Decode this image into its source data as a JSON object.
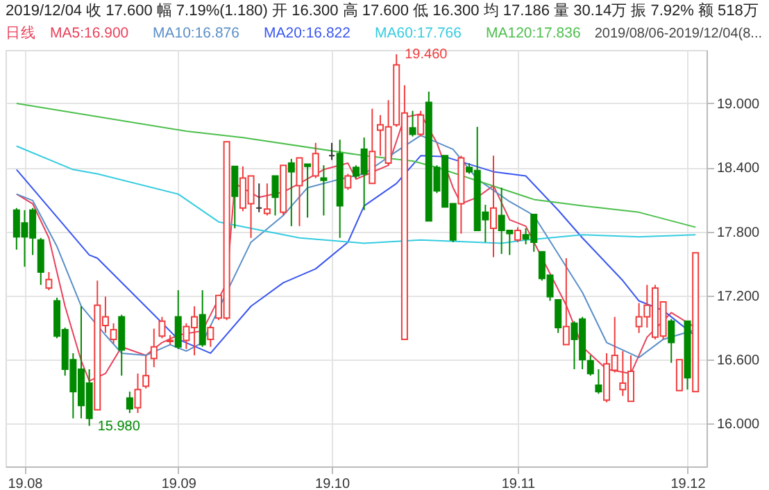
{
  "chart_data": {
    "type": "candlestick",
    "title": "2019/12/04 收 17.600 幅 7.19%(1.180) 开 16.300 高 17.600 低 16.300 均 17.186 量 30.14万 振 7.92% 额 518万",
    "subtitle": "日线",
    "categories": [
      null,
      "19.08",
      null,
      null,
      null,
      null,
      null,
      null,
      null,
      null,
      null,
      null,
      null,
      null,
      null,
      null,
      null,
      null,
      null,
      null,
      "19.09",
      null,
      null,
      null,
      null,
      null,
      null,
      null,
      null,
      null,
      null,
      null,
      null,
      null,
      null,
      null,
      null,
      null,
      null,
      "19.10",
      null,
      null,
      null,
      null,
      null,
      null,
      null,
      null,
      null,
      null,
      null,
      null,
      null,
      null,
      null,
      null,
      null,
      null,
      null,
      null,
      null,
      null,
      "19.11",
      null,
      null,
      null,
      null,
      null,
      null,
      null,
      null,
      null,
      null,
      null,
      null,
      null,
      null,
      null,
      null,
      null,
      null,
      null,
      null,
      "19.12",
      null
    ],
    "ohlc": [
      [
        18.0,
        18.02,
        17.63,
        17.75
      ],
      [
        17.88,
        18.0,
        17.47,
        17.75
      ],
      [
        18.0,
        18.02,
        17.58,
        17.74
      ],
      [
        17.72,
        17.74,
        17.3,
        17.42
      ],
      [
        17.27,
        17.42,
        17.25,
        17.35
      ],
      [
        17.15,
        17.18,
        16.8,
        16.82
      ],
      [
        16.88,
        16.9,
        16.45,
        16.51
      ],
      [
        16.6,
        16.66,
        16.05,
        16.3
      ],
      [
        16.51,
        17.1,
        16.05,
        16.17
      ],
      [
        16.38,
        16.51,
        15.98,
        16.05
      ],
      [
        16.13,
        17.34,
        16.13,
        17.11
      ],
      [
        16.92,
        17.19,
        16.85,
        17.0
      ],
      [
        16.79,
        16.94,
        16.75,
        16.88
      ],
      [
        17.0,
        17.02,
        16.45,
        16.69
      ],
      [
        16.24,
        16.3,
        16.1,
        16.14
      ],
      [
        16.15,
        16.47,
        16.1,
        16.32
      ],
      [
        16.35,
        16.64,
        16.33,
        16.45
      ],
      [
        16.61,
        16.89,
        16.53,
        16.72
      ],
      [
        16.82,
        17.0,
        16.8,
        16.96
      ],
      [
        16.77,
        16.83,
        16.74,
        16.78
      ],
      [
        17.0,
        17.25,
        16.7,
        16.72
      ],
      [
        16.78,
        16.94,
        16.7,
        16.91
      ],
      [
        16.9,
        17.1,
        16.64,
        17.0
      ],
      [
        17.02,
        17.25,
        16.72,
        16.74
      ],
      [
        16.79,
        16.92,
        16.72,
        16.9
      ],
      [
        16.99,
        17.2,
        16.97,
        17.2
      ],
      [
        16.99,
        18.64,
        16.97,
        18.64
      ],
      [
        18.41,
        18.41,
        17.83,
        18.13
      ],
      [
        18.02,
        18.41,
        17.99,
        18.3
      ],
      [
        18.06,
        18.32,
        17.74,
        18.32
      ],
      [
        18.02,
        18.25,
        17.98,
        18.02
      ],
      [
        17.97,
        18.25,
        17.95,
        18.01
      ],
      [
        18.32,
        18.32,
        17.95,
        18.12
      ],
      [
        17.98,
        18.42,
        17.95,
        18.42
      ],
      [
        18.44,
        18.48,
        17.85,
        18.36
      ],
      [
        18.23,
        18.49,
        17.85,
        18.49
      ],
      [
        18.43,
        18.43,
        17.93,
        18.41
      ],
      [
        18.32,
        18.63,
        18.3,
        18.53
      ],
      [
        18.3,
        18.42,
        17.95,
        18.28
      ],
      [
        18.51,
        18.63,
        18.47,
        18.51
      ],
      [
        18.53,
        18.66,
        17.74,
        18.04
      ],
      [
        18.21,
        18.34,
        18.19,
        18.32
      ],
      [
        18.4,
        18.42,
        18.3,
        18.32
      ],
      [
        18.57,
        18.68,
        18.0,
        18.34
      ],
      [
        18.25,
        18.95,
        18.25,
        18.55
      ],
      [
        18.75,
        18.89,
        18.51,
        18.8
      ],
      [
        18.44,
        19.03,
        18.42,
        18.78
      ],
      [
        18.8,
        19.46,
        18.78,
        19.36
      ],
      [
        16.79,
        19.17,
        16.79,
        18.91
      ],
      [
        18.77,
        18.93,
        18.69,
        18.71
      ],
      [
        18.71,
        18.93,
        18.69,
        18.89
      ],
      [
        19.01,
        19.11,
        17.9,
        17.9
      ],
      [
        18.4,
        18.42,
        18.16,
        18.18
      ],
      [
        18.51,
        18.51,
        18.03,
        18.03
      ],
      [
        18.06,
        18.06,
        17.7,
        17.72
      ],
      [
        18.06,
        18.51,
        17.78,
        18.49
      ],
      [
        18.4,
        18.44,
        18.34,
        18.36
      ],
      [
        18.37,
        18.78,
        17.81,
        17.81
      ],
      [
        17.98,
        18.05,
        17.7,
        17.91
      ],
      [
        17.83,
        18.51,
        17.56,
        18.02
      ],
      [
        17.95,
        18.21,
        17.59,
        17.81
      ],
      [
        17.81,
        17.81,
        17.58,
        17.78
      ],
      [
        17.72,
        17.84,
        17.7,
        17.81
      ],
      [
        17.77,
        17.83,
        17.68,
        17.73
      ],
      [
        17.96,
        17.96,
        17.61,
        17.7
      ],
      [
        17.61,
        17.61,
        17.34,
        17.36
      ],
      [
        17.39,
        17.39,
        17.15,
        17.19
      ],
      [
        17.16,
        17.16,
        16.85,
        16.9
      ],
      [
        16.74,
        17.55,
        16.74,
        16.91
      ],
      [
        16.94,
        16.96,
        16.51,
        16.79
      ],
      [
        16.98,
        17.0,
        16.51,
        16.6
      ],
      [
        16.59,
        16.64,
        16.45,
        16.47
      ],
      [
        16.36,
        16.51,
        16.28,
        16.3
      ],
      [
        16.22,
        16.66,
        16.2,
        16.56
      ],
      [
        16.5,
        17.0,
        16.48,
        16.64
      ],
      [
        16.32,
        16.68,
        16.26,
        16.38
      ],
      [
        16.21,
        16.64,
        16.21,
        16.49
      ],
      [
        16.91,
        17.13,
        16.85,
        17.0
      ],
      [
        17.0,
        17.3,
        16.9,
        17.11
      ],
      [
        16.81,
        17.3,
        16.79,
        17.27
      ],
      [
        16.82,
        17.14,
        16.79,
        17.14
      ],
      [
        16.96,
        16.98,
        16.57,
        16.76
      ],
      [
        16.31,
        16.6,
        16.31,
        16.6
      ],
      [
        16.96,
        16.96,
        16.32,
        16.43
      ],
      [
        16.3,
        17.6,
        16.3,
        17.6
      ]
    ],
    "colors": [
      "#008a00",
      "#008a00",
      "#008a00",
      "#008a00",
      "#f03c3c",
      "#008a00",
      "#008a00",
      "#008a00",
      "#008a00",
      "#008a00",
      "#f03c3c",
      "#f03c3c",
      "#f03c3c",
      "#008a00",
      "#008a00",
      "#f03c3c",
      "#f03c3c",
      "#f03c3c",
      "#f03c3c",
      "#f03c3c",
      "#008a00",
      "#f03c3c",
      "#f03c3c",
      "#008a00",
      "#f03c3c",
      "#f03c3c",
      "#f03c3c",
      "#008a00",
      "#f03c3c",
      "#f03c3c",
      "#333333",
      "#f03c3c",
      "#008a00",
      "#f03c3c",
      "#008a00",
      "#f03c3c",
      "#008a00",
      "#f03c3c",
      "#008a00",
      "#333333",
      "#008a00",
      "#f03c3c",
      "#008a00",
      "#008a00",
      "#f03c3c",
      "#f03c3c",
      "#f03c3c",
      "#f03c3c",
      "#f03c3c",
      "#008a00",
      "#f03c3c",
      "#008a00",
      "#008a00",
      "#008a00",
      "#008a00",
      "#f03c3c",
      "#008a00",
      "#008a00",
      "#008a00",
      "#f03c3c",
      "#008a00",
      "#008a00",
      "#f03c3c",
      "#008a00",
      "#008a00",
      "#008a00",
      "#008a00",
      "#008a00",
      "#f03c3c",
      "#008a00",
      "#008a00",
      "#008a00",
      "#008a00",
      "#f03c3c",
      "#f03c3c",
      "#f03c3c",
      "#f03c3c",
      "#f03c3c",
      "#f03c3c",
      "#f03c3c",
      "#f03c3c",
      "#008a00",
      "#f03c3c",
      "#008a00",
      "#f03c3c"
    ],
    "series": [
      {
        "name": "MA5:16.900",
        "type": "line",
        "color": "#e8415a",
        "values": [
          18.15,
          null,
          18.06,
          null,
          17.74,
          null,
          17.1,
          null,
          16.59,
          16.4,
          null,
          16.47,
          null,
          16.72,
          null,
          null,
          16.64,
          null,
          16.76,
          null,
          16.83,
          null,
          null,
          16.87,
          null,
          null,
          17.32,
          18.25,
          null,
          null,
          18.12,
          null,
          null,
          18.17,
          null,
          18.25,
          null,
          null,
          18.38,
          null,
          null,
          18.44,
          18.29,
          null,
          null,
          null,
          18.42,
          null,
          18.87,
          null,
          18.9,
          null,
          18.63,
          null,
          18.21,
          18.06,
          null,
          18.12,
          null,
          18.23,
          null,
          17.91,
          null,
          17.85,
          null,
          null,
          null,
          null,
          17.11,
          null,
          16.72,
          null,
          null,
          16.51,
          null,
          null,
          16.47,
          null,
          16.81,
          null,
          null,
          17.04,
          null,
          null,
          16.9
        ]
      },
      {
        "name": "MA10:16.876",
        "type": "line",
        "color": "#5b8fc9",
        "values": [
          18.15,
          null,
          18.09,
          null,
          null,
          17.66,
          null,
          null,
          17.1,
          null,
          null,
          16.83,
          null,
          16.66,
          null,
          null,
          16.64,
          null,
          null,
          16.74,
          null,
          16.68,
          null,
          16.76,
          null,
          null,
          null,
          null,
          null,
          17.7,
          null,
          null,
          null,
          17.95,
          null,
          null,
          18.21,
          null,
          null,
          null,
          18.29,
          null,
          null,
          18.34,
          null,
          null,
          null,
          18.55,
          null,
          null,
          18.7,
          null,
          null,
          null,
          18.57,
          null,
          null,
          18.29,
          null,
          null,
          null,
          18.08,
          null,
          null,
          17.95,
          17.83,
          null,
          null,
          null,
          null,
          17.23,
          null,
          null,
          16.76,
          null,
          null,
          null,
          16.62,
          null,
          null,
          16.79,
          null,
          null,
          null,
          16.88
        ]
      },
      {
        "name": "MA20:16.822",
        "type": "line",
        "color": "#3a56f0",
        "values": [
          18.38,
          null,
          null,
          null,
          null,
          null,
          null,
          null,
          null,
          17.58,
          17.55,
          null,
          null,
          null,
          null,
          null,
          null,
          17.02,
          null,
          null,
          16.79,
          null,
          null,
          null,
          16.66,
          null,
          null,
          null,
          null,
          17.1,
          null,
          null,
          null,
          17.32,
          null,
          null,
          null,
          17.45,
          null,
          null,
          null,
          17.7,
          null,
          18.04,
          null,
          null,
          null,
          18.25,
          null,
          null,
          18.51,
          null,
          null,
          18.5,
          null,
          null,
          null,
          null,
          null,
          18.36,
          null,
          null,
          null,
          18.32,
          null,
          null,
          null,
          18.0,
          null,
          null,
          17.74,
          null,
          null,
          null,
          null,
          17.34,
          null,
          17.15,
          null,
          null,
          17.06,
          null,
          null,
          null,
          16.82
        ]
      },
      {
        "name": "MA60:17.766",
        "type": "line",
        "color": "#35cce0",
        "values": [
          18.6,
          null,
          null,
          null,
          null,
          null,
          null,
          18.38,
          null,
          null,
          18.34,
          null,
          null,
          null,
          null,
          null,
          null,
          null,
          null,
          null,
          18.15,
          null,
          null,
          null,
          null,
          17.89,
          null,
          null,
          null,
          null,
          null,
          null,
          null,
          null,
          null,
          17.74,
          null,
          null,
          null,
          null,
          null,
          null,
          null,
          17.69,
          null,
          null,
          null,
          null,
          null,
          null,
          17.72,
          null,
          null,
          null,
          null,
          null,
          null,
          null,
          null,
          null,
          17.69,
          null,
          null,
          17.72,
          null,
          null,
          null,
          null,
          null,
          null,
          17.77,
          null,
          null,
          null,
          null,
          null,
          null,
          17.75,
          null,
          null,
          null,
          null,
          null,
          null,
          17.77
        ]
      },
      {
        "name": "MA120:17.836",
        "type": "line",
        "color": "#4cbf4c",
        "values": [
          19.0,
          null,
          null,
          null,
          null,
          null,
          null,
          null,
          null,
          null,
          null,
          null,
          null,
          null,
          null,
          null,
          null,
          null,
          null,
          null,
          null,
          18.74,
          null,
          null,
          null,
          null,
          null,
          null,
          18.68,
          null,
          null,
          null,
          null,
          null,
          null,
          null,
          null,
          null,
          null,
          null,
          null,
          null,
          null,
          18.51,
          null,
          null,
          null,
          null,
          null,
          18.46,
          null,
          null,
          18.4,
          null,
          null,
          null,
          null,
          null,
          18.25,
          null,
          null,
          null,
          null,
          null,
          18.1,
          null,
          null,
          null,
          null,
          null,
          18.04,
          null,
          null,
          null,
          null,
          null,
          null,
          17.98,
          null,
          null,
          null,
          null,
          null,
          null,
          17.84
        ]
      }
    ],
    "ylim": [
      15.6,
      19.5
    ],
    "yticks": [
      {
        "value": 16.0,
        "label": "16.000"
      },
      {
        "value": 16.6,
        "label": "16.600"
      },
      {
        "value": 17.2,
        "label": "17.200"
      },
      {
        "value": 17.8,
        "label": "17.800"
      },
      {
        "value": 18.4,
        "label": "18.400"
      },
      {
        "value": 19.0,
        "label": "19.000"
      }
    ],
    "grid": true,
    "legend": "top left",
    "annotations": [
      "19.460",
      "15.980",
      "2019/08/06-2019/12/04(8..."
    ]
  }
}
